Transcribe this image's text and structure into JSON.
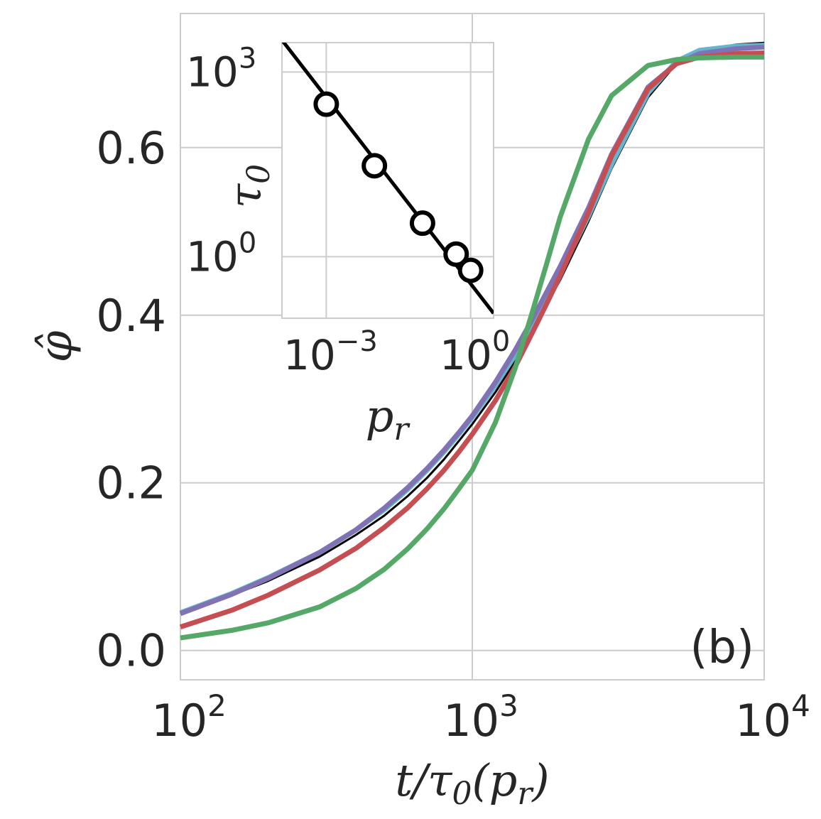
{
  "chart_data": [
    {
      "type": "line",
      "panel_label": "(b)",
      "xlabel": "t/τ0(pr)",
      "ylabel": "φ̂",
      "xscale": "log",
      "xlim": [
        100,
        10000
      ],
      "ylim": [
        -0.035,
        0.76
      ],
      "grid": true,
      "x_ticks": [
        {
          "value": 100,
          "base": "10",
          "exp": "2"
        },
        {
          "value": 1000,
          "base": "10",
          "exp": "3"
        },
        {
          "value": 10000,
          "base": "10",
          "exp": "4"
        }
      ],
      "y_ticks": [
        {
          "value": 0.0,
          "label": "0.0"
        },
        {
          "value": 0.2,
          "label": "0.2"
        },
        {
          "value": 0.4,
          "label": "0.4"
        },
        {
          "value": 0.6,
          "label": "0.6"
        }
      ],
      "x": [
        100,
        150,
        200,
        300,
        400,
        500,
        600,
        700,
        800,
        900,
        1000,
        1200,
        1400,
        1600,
        1800,
        2000,
        2500,
        3000,
        4000,
        5000,
        6000,
        8000,
        10000
      ],
      "series": [
        {
          "color": "#000000",
          "width": 3,
          "values": [
            0.044,
            0.066,
            0.083,
            0.112,
            0.138,
            0.161,
            0.184,
            0.206,
            0.228,
            0.25,
            0.27,
            0.308,
            0.345,
            0.381,
            0.413,
            0.442,
            0.512,
            0.575,
            0.66,
            0.7,
            0.715,
            0.723,
            0.725
          ]
        },
        {
          "color": "#64b5cd",
          "width": 7,
          "values": [
            0.045,
            0.068,
            0.087,
            0.117,
            0.144,
            0.168,
            0.192,
            0.215,
            0.237,
            0.258,
            0.278,
            0.316,
            0.352,
            0.388,
            0.42,
            0.45,
            0.518,
            0.58,
            0.665,
            0.703,
            0.716,
            0.721,
            0.722
          ]
        },
        {
          "color": "#8172b3",
          "width": 7,
          "values": [
            0.044,
            0.067,
            0.086,
            0.117,
            0.144,
            0.17,
            0.194,
            0.217,
            0.239,
            0.26,
            0.28,
            0.32,
            0.358,
            0.394,
            0.428,
            0.458,
            0.528,
            0.592,
            0.672,
            0.7,
            0.712,
            0.718,
            0.72
          ]
        },
        {
          "color": "#c44e52",
          "width": 7,
          "values": [
            0.028,
            0.048,
            0.066,
            0.096,
            0.122,
            0.147,
            0.17,
            0.193,
            0.215,
            0.237,
            0.258,
            0.298,
            0.338,
            0.378,
            0.414,
            0.447,
            0.522,
            0.59,
            0.67,
            0.7,
            0.708,
            0.712,
            0.713
          ]
        },
        {
          "color": "#55a868",
          "width": 7,
          "values": [
            0.015,
            0.024,
            0.033,
            0.052,
            0.074,
            0.097,
            0.121,
            0.145,
            0.169,
            0.193,
            0.215,
            0.272,
            0.336,
            0.402,
            0.462,
            0.517,
            0.61,
            0.662,
            0.698,
            0.705,
            0.707,
            0.708,
            0.708
          ]
        }
      ]
    },
    {
      "type": "line",
      "inset": true,
      "xlabel": "pr",
      "ylabel": "τ0",
      "xscale": "log",
      "yscale": "log",
      "xlim": [
        0.00012,
        3
      ],
      "ylim": [
        0.1,
        3000
      ],
      "grid": true,
      "x_ticks": [
        {
          "value": 0.001,
          "base": "10",
          "exp": "−3"
        },
        {
          "value": 1,
          "base": "10",
          "exp": "0"
        }
      ],
      "y_ticks": [
        {
          "value": 1,
          "base": "10",
          "exp": "0"
        },
        {
          "value": 1000,
          "base": "10",
          "exp": "3"
        }
      ],
      "fit_line": {
        "x": [
          0.00012,
          3
        ],
        "y": [
          3300,
          0.12
        ]
      },
      "points": {
        "x": [
          0.001,
          0.01,
          0.1,
          0.5,
          1.0
        ],
        "y": [
          300,
          30,
          3.5,
          1.1,
          0.6
        ]
      }
    }
  ]
}
